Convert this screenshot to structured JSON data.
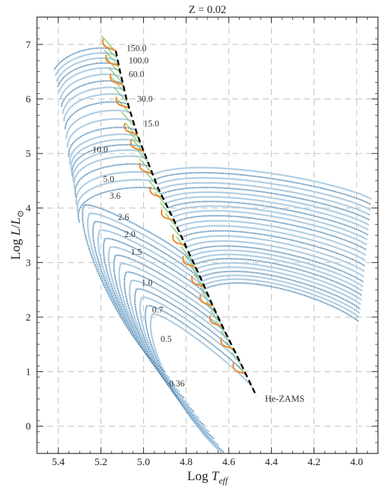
{
  "chart_data": {
    "type": "line",
    "title": "Z = 0.02",
    "xlabel": {
      "main": "Log ",
      "var": "T",
      "sub": "eff"
    },
    "ylabel": {
      "main": "Log ",
      "var": "L",
      "slash": "/",
      "var2": "L",
      "sub": "⊙"
    },
    "xlim": [
      5.5,
      3.9
    ],
    "ylim": [
      -0.5,
      7.5
    ],
    "x_reversed": true,
    "x_ticks": [
      "5.4",
      "5.2",
      "5.0",
      "4.8",
      "4.6",
      "4.4",
      "4.2",
      "4.0"
    ],
    "y_ticks": [
      "0",
      "1",
      "2",
      "3",
      "4",
      "5",
      "6",
      "7"
    ],
    "grid": true,
    "colors": {
      "tracks": "#a9c9e0",
      "track_dots": "#2a5a88",
      "zams": "#000000",
      "green": "#7cc46a",
      "orange": "#f08a2c"
    },
    "series": [
      {
        "name": "He-ZAMS",
        "points": [
          [
            5.13,
            6.88
          ],
          [
            5.11,
            6.5
          ],
          [
            5.08,
            6.0
          ],
          [
            5.03,
            5.35
          ],
          [
            4.99,
            4.95
          ],
          [
            4.93,
            4.35
          ],
          [
            4.86,
            3.8
          ],
          [
            4.79,
            3.2
          ],
          [
            4.73,
            2.7
          ],
          [
            4.68,
            2.25
          ],
          [
            4.62,
            1.75
          ],
          [
            4.55,
            1.2
          ],
          [
            4.47,
            0.55
          ]
        ]
      }
    ],
    "mass_labels": [
      {
        "text": "150.0",
        "x": 5.08,
        "y": 6.93
      },
      {
        "text": "100.0",
        "x": 5.07,
        "y": 6.7
      },
      {
        "text": "60.0",
        "x": 5.07,
        "y": 6.45
      },
      {
        "text": "30.0",
        "x": 5.03,
        "y": 6.0
      },
      {
        "text": "15.0",
        "x": 5.0,
        "y": 5.55
      },
      {
        "text": "10.0",
        "x": 5.24,
        "y": 5.07
      },
      {
        "text": "5.0",
        "x": 5.19,
        "y": 4.53
      },
      {
        "text": "3.6",
        "x": 5.16,
        "y": 4.22
      },
      {
        "text": "2.6",
        "x": 5.12,
        "y": 3.83
      },
      {
        "text": "2.0",
        "x": 5.09,
        "y": 3.52
      },
      {
        "text": "1.5",
        "x": 5.06,
        "y": 3.19
      },
      {
        "text": "1.0",
        "x": 5.01,
        "y": 2.63
      },
      {
        "text": "0.7",
        "x": 4.96,
        "y": 2.13
      },
      {
        "text": "0.5",
        "x": 4.92,
        "y": 1.6
      },
      {
        "text": "0.36",
        "x": 4.88,
        "y": 0.78
      }
    ],
    "annotation": {
      "text": "He-ZAMS",
      "x": 4.43,
      "y": 0.5
    }
  }
}
